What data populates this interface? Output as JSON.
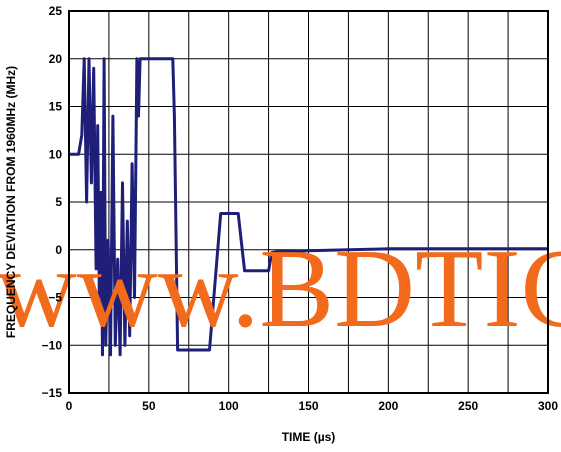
{
  "chart_data": {
    "type": "line",
    "xlabel": "TIME (µs)",
    "ylabel": "FREQUENCY DEVIATION FROM 1960MHz (MHz)",
    "xlim": [
      0,
      300
    ],
    "ylim": [
      -15,
      25
    ],
    "x_ticks": [
      0,
      50,
      100,
      150,
      200,
      250,
      300
    ],
    "y_ticks": [
      -15,
      -10,
      -5,
      0,
      5,
      10,
      15,
      20,
      25
    ],
    "x_tick_labels": [
      "0",
      "50",
      "100",
      "150",
      "200",
      "250",
      "300"
    ],
    "y_tick_labels": [
      "−15",
      "−10",
      "−5",
      "0",
      "5",
      "10",
      "15",
      "20",
      "25"
    ],
    "grid": true,
    "line_color": "#1f1f7a",
    "series": [
      {
        "x": [
          0,
          6,
          8,
          9.5,
          11,
          12.5,
          14,
          15.5,
          17,
          18,
          19,
          20,
          21,
          22,
          23,
          24.5,
          26,
          27.5,
          29,
          30.5,
          32,
          33.5,
          35,
          36.5,
          38,
          39.5,
          41,
          42.5,
          43.5,
          44.5,
          46,
          56,
          57,
          63,
          65,
          66,
          68,
          73,
          75,
          85,
          88,
          95,
          100,
          101,
          105,
          106,
          110,
          124,
          125,
          127,
          130,
          150,
          175,
          200,
          230,
          260,
          300
        ],
        "y": [
          10,
          10,
          12,
          20,
          5,
          20,
          7,
          19,
          -2,
          13,
          -5,
          6,
          -11,
          20,
          -10,
          1,
          -11,
          14,
          -10,
          -1,
          -11,
          7,
          -10,
          3,
          -9,
          9,
          -5,
          20,
          14,
          20,
          20,
          20,
          20,
          20,
          20,
          14,
          -10.5,
          -10.5,
          -10.5,
          -10.5,
          -10.5,
          3.8,
          3.8,
          3.8,
          3.8,
          3.8,
          -2.2,
          -2.2,
          -2.2,
          -0.3,
          -0.2,
          -0.1,
          0,
          0.1,
          0.1,
          0.1,
          0.1
        ]
      }
    ]
  },
  "watermark": "www.BDTIC"
}
